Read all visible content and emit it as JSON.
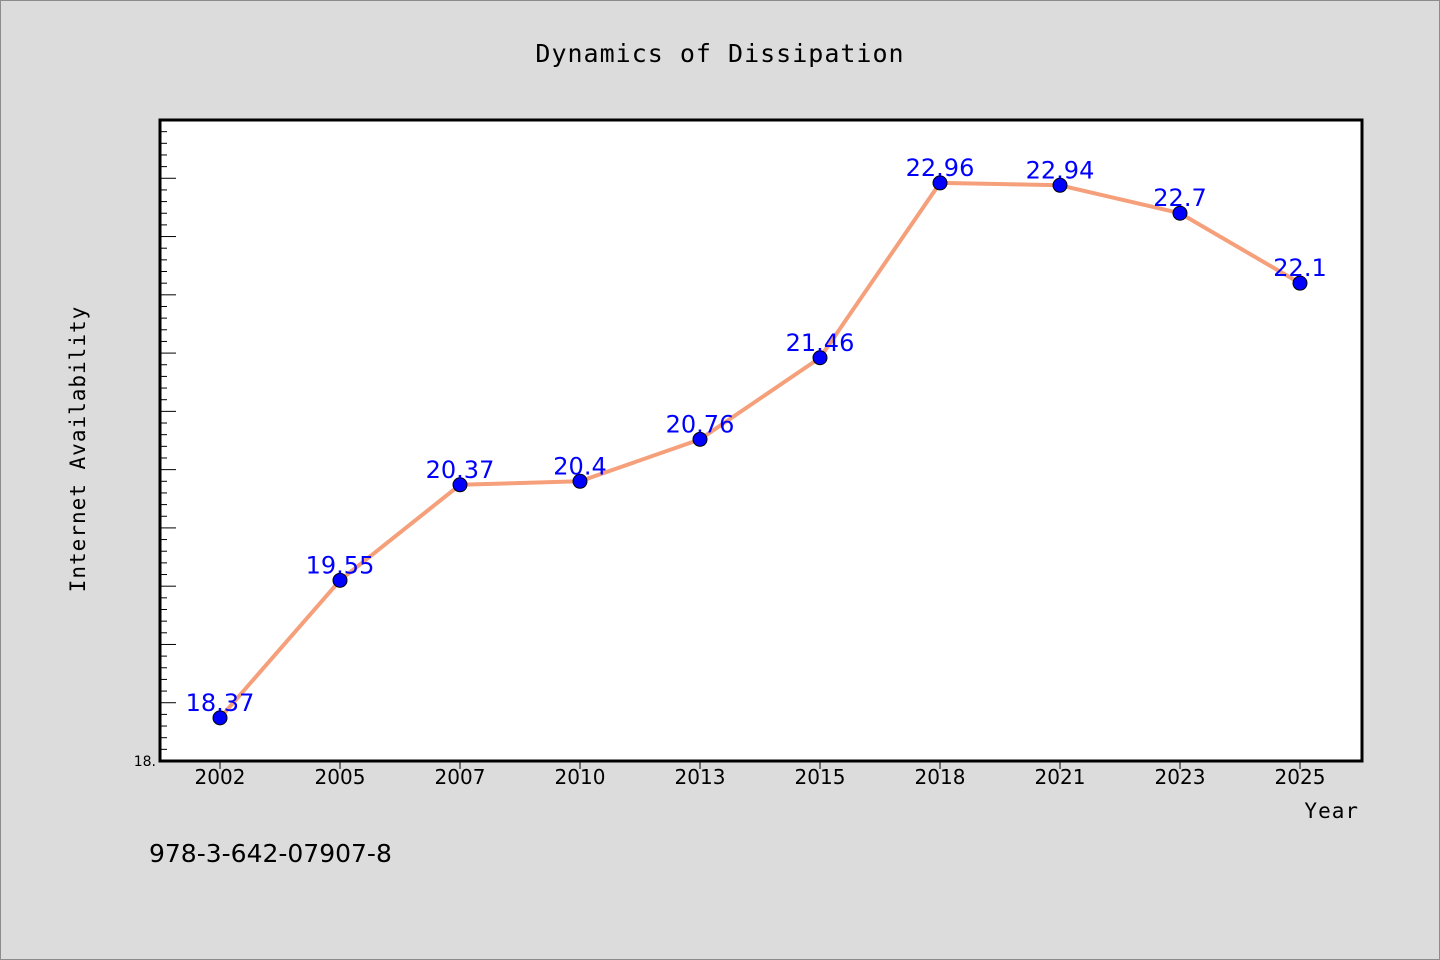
{
  "chart_data": {
    "type": "line",
    "title": "Dynamics of Dissipation",
    "xlabel": "Year",
    "ylabel": "Internet Availability",
    "categories": [
      "2002",
      "2005",
      "2007",
      "2010",
      "2013",
      "2015",
      "2018",
      "2021",
      "2023",
      "2025"
    ],
    "series": [
      {
        "values": [
          18.37,
          19.55,
          20.37,
          20.4,
          20.76,
          21.46,
          22.96,
          22.94,
          22.7,
          22.1
        ],
        "labels": [
          "18.37",
          "19.55",
          "20.37",
          "20.4",
          "20.76",
          "21.46",
          "22.96",
          "22.94",
          "22.7",
          "22.1"
        ],
        "line_color": "#f5a07a",
        "marker_color": "#0000ff"
      }
    ],
    "ylim": [
      18.0,
      23.5
    ],
    "ytick_labels": [
      "18."
    ],
    "grid": false,
    "legend": "none"
  },
  "annotation": "978-3-642-07907-8"
}
